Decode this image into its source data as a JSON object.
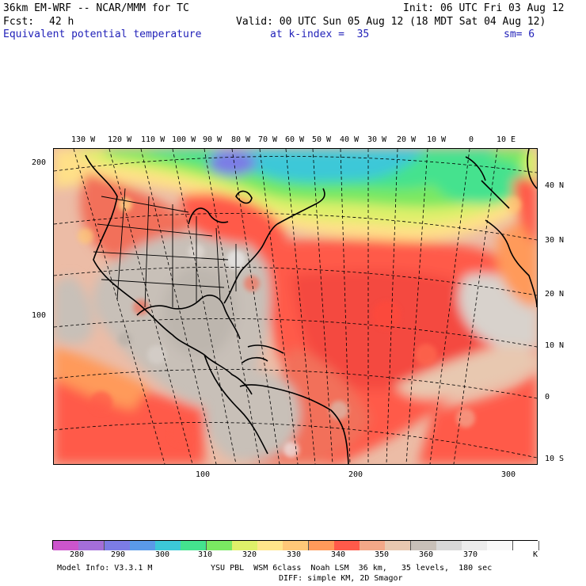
{
  "header": {
    "model": "36km EM-WRF -- NCAR/MMM for TC",
    "init": "Init: 06 UTC Fri 03 Aug 12",
    "fcst_label": "Fcst:",
    "fcst_value": "42 h",
    "valid": "Valid: 00 UTC Sun 05 Aug 12 (18 MDT Sat 04 Aug 12)",
    "field": "Equivalent potential temperature",
    "level": "at k-index =  35",
    "smoothing": "sm= 6"
  },
  "map": {
    "top_lon_labels": [
      "130 W",
      "120 W",
      "110 W",
      "100 W",
      "90 W",
      "80 W",
      "70 W",
      "60 W",
      "50 W",
      "40 W",
      "30 W",
      "20 W",
      "10 W",
      "0",
      "10 E"
    ],
    "right_lat_labels": [
      "40 N",
      "30 N",
      "20 N",
      "10 N",
      "0",
      "10 S"
    ],
    "left_grid_labels": [
      "200",
      "100"
    ],
    "bottom_grid_labels": [
      "100",
      "200",
      "300"
    ]
  },
  "colorbar": {
    "unit": "K",
    "labels": [
      "280",
      "290",
      "300",
      "310",
      "320",
      "330",
      "340",
      "350",
      "360",
      "370"
    ],
    "colors": [
      "#cc55cc",
      "#a46ed9",
      "#7c7ce6",
      "#5a9ae8",
      "#3cc8d8",
      "#44e28e",
      "#7ae862",
      "#dff06a",
      "#ffe68a",
      "#ffc878",
      "#ff9a5a",
      "#ff5a4a",
      "#f3a888",
      "#e8c8b0",
      "#c8c0b8",
      "#d8d8d8",
      "#ececec",
      "#f8f8f8",
      "#ffffff"
    ]
  },
  "footer": {
    "model_info": "Model Info: V3.3.1 M",
    "physics": "YSU PBL  WSM 6class  Noah LSM  36 km,   35 levels,  180 sec",
    "diffusion": "DIFF: simple KM, 2D Smagor"
  }
}
